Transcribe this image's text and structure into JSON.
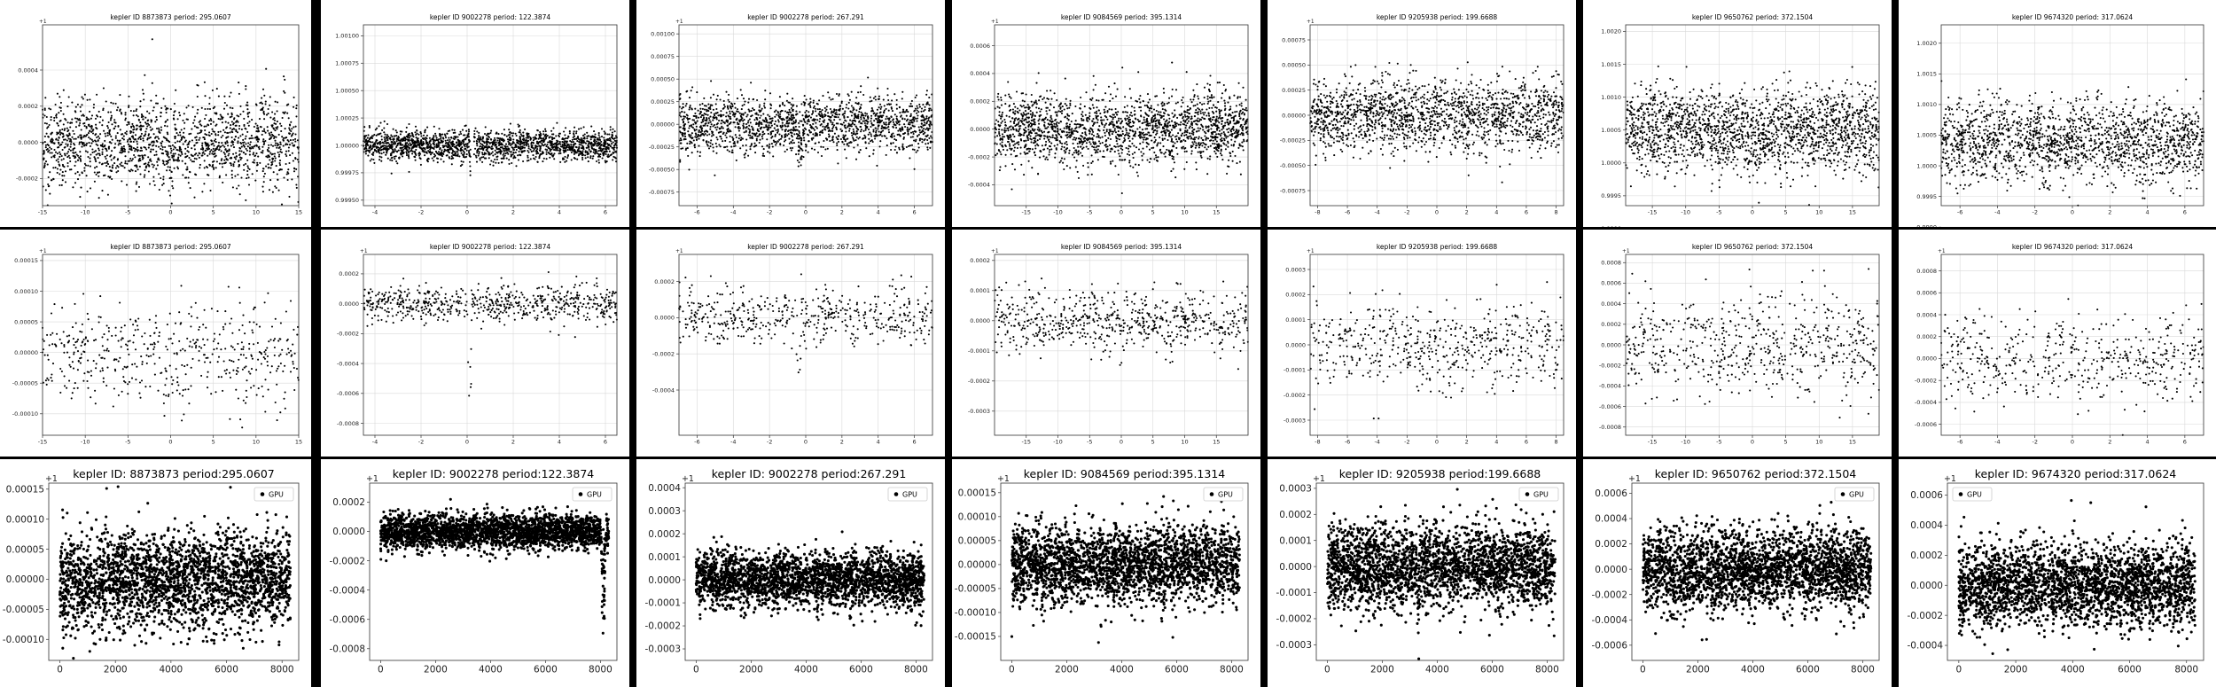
{
  "chart_data": [
    {
      "type": "scatter",
      "title": "kepler ID 8873873 period: 295.0607",
      "offset_label": "+1",
      "xlim": [
        -15,
        15
      ],
      "ylim": [
        -0.00035,
        0.00065
      ],
      "xticks": [
        "-15",
        "-10",
        "-5",
        "0",
        "5",
        "10",
        "15"
      ],
      "yticks": [
        "-0.0002",
        "0.0000",
        "0.0002",
        "0.0004"
      ],
      "grid": true,
      "points": {
        "n": 1700,
        "center": 0.0,
        "spread": 0.00012,
        "dips": [
          {
            "x": 0,
            "depth": 0.00015,
            "width": 0.35
          }
        ],
        "spikes": []
      }
    },
    {
      "type": "scatter",
      "title": "kepler ID 9002278 period: 122.3874",
      "offset_label": "",
      "xlim": [
        -4.5,
        6.5
      ],
      "ylim": [
        0.99945,
        1.0011
      ],
      "xticks": [
        "-4",
        "-2",
        "0",
        "2",
        "4",
        "6"
      ],
      "yticks": [
        "0.99950",
        "0.99975",
        "1.00000",
        "1.00025",
        "1.00050",
        "1.00075",
        "1.00100"
      ],
      "grid": true,
      "points": {
        "n": 1900,
        "center": 1.0,
        "spread": 7e-05,
        "dips": [
          {
            "x": 0.2,
            "depth": 0.0003,
            "width": 0.12
          }
        ],
        "spikes": []
      }
    },
    {
      "type": "scatter",
      "title": "kepler ID 9002278 period: 267.291",
      "offset_label": "+1",
      "xlim": [
        -7,
        7
      ],
      "ylim": [
        -0.0009,
        0.0011
      ],
      "xticks": [
        "-6",
        "-4",
        "-2",
        "0",
        "2",
        "4",
        "6"
      ],
      "yticks": [
        "-0.00075",
        "-0.00050",
        "-0.00025",
        "0.00000",
        "0.00025",
        "0.00050",
        "0.00075",
        "0.00100"
      ],
      "grid": true,
      "points": {
        "n": 1700,
        "center": 0.0,
        "spread": 0.00016,
        "dips": [
          {
            "x": -0.3,
            "depth": 0.00045,
            "width": 0.2
          }
        ],
        "spikes": []
      }
    },
    {
      "type": "scatter",
      "title": "kepler ID 9084569 period: 395.1314",
      "offset_label": "+1",
      "xlim": [
        -20,
        20
      ],
      "ylim": [
        -0.00055,
        0.00075
      ],
      "xticks": [
        "-15",
        "-10",
        "-5",
        "0",
        "5",
        "10",
        "15"
      ],
      "yticks": [
        "-0.0004",
        "-0.0002",
        "0.0000",
        "0.0002",
        "0.0004",
        "0.0006"
      ],
      "grid": true,
      "points": {
        "n": 1900,
        "center": 0.0,
        "spread": 0.00012,
        "dips": [
          {
            "x": 0,
            "depth": 0.0002,
            "width": 0.4
          },
          {
            "x": 8,
            "depth": 0.00025,
            "width": 0.5
          },
          {
            "x": -7,
            "depth": 0.0001,
            "width": 0.4
          }
        ],
        "spikes": [
          {
            "x": 8,
            "height": 0.0004,
            "width": 0.4
          },
          {
            "x": 14,
            "height": 0.0004,
            "width": 0.4
          }
        ]
      }
    },
    {
      "type": "scatter",
      "title": "kepler ID 9205938 period: 199.6688",
      "offset_label": "+1",
      "xlim": [
        -8.5,
        8.5
      ],
      "ylim": [
        -0.0009,
        0.0009
      ],
      "xticks": [
        "-8",
        "-6",
        "-4",
        "-2",
        "0",
        "2",
        "4",
        "6",
        "8"
      ],
      "yticks": [
        "-0.00075",
        "-0.00050",
        "-0.00025",
        "0.00000",
        "0.00025",
        "0.00050",
        "0.00075"
      ],
      "grid": true,
      "points": {
        "n": 1700,
        "center": 0.0,
        "spread": 0.00018,
        "dips": [
          {
            "x": -0.5,
            "depth": 0.0002,
            "width": 0.3
          }
        ],
        "spikes": []
      }
    },
    {
      "type": "scatter",
      "title": "kepler ID 9650762 period: 372.1504",
      "offset_label": "",
      "xlim": [
        -19,
        19
      ],
      "ylim": [
        0.99935,
        1.0021
      ],
      "xticks": [
        "-15",
        "-10",
        "-5",
        "0",
        "5",
        "10",
        "15"
      ],
      "yticks": [
        "0.9990",
        "0.9995",
        "1.0000",
        "1.0005",
        "1.0010",
        "1.0015",
        "1.0020"
      ],
      "grid": true,
      "points": {
        "n": 1900,
        "center": 1.0005,
        "spread": 0.00032,
        "dips": [
          {
            "x": -5,
            "depth": 0.00025,
            "width": 0.5
          }
        ],
        "spikes": []
      }
    },
    {
      "type": "scatter",
      "title": "kepler ID 9674320 period: 317.0624",
      "offset_label": "",
      "xlim": [
        -7,
        7
      ],
      "ylim": [
        0.99935,
        1.0023
      ],
      "xticks": [
        "-6",
        "-4",
        "-2",
        "0",
        "2",
        "4",
        "6"
      ],
      "yticks": [
        "0.9990",
        "0.9995",
        "1.0000",
        "1.0005",
        "1.0010",
        "1.0015",
        "1.0020"
      ],
      "grid": true,
      "points": {
        "n": 1700,
        "center": 1.0004,
        "spread": 0.00033,
        "dips": [
          {
            "x": -1.4,
            "depth": 0.0004,
            "width": 0.25
          }
        ],
        "spikes": []
      }
    },
    {
      "type": "scatter",
      "title": "kepler ID 8873873 period: 295.0607",
      "offset_label": "+1",
      "xlim": [
        -15,
        15
      ],
      "ylim": [
        -0.000135,
        0.00016
      ],
      "xticks": [
        "-15",
        "-10",
        "-5",
        "0",
        "5",
        "10",
        "15"
      ],
      "yticks": [
        "-0.00010",
        "-0.00005",
        "0.00000",
        "0.00005",
        "0.00010",
        "0.00015"
      ],
      "grid": true,
      "points": {
        "n": 500,
        "center": 0.0,
        "spread": 4e-05,
        "dips": [
          {
            "x": -1,
            "depth": 9e-05,
            "width": 0.5
          }
        ],
        "spikes": []
      }
    },
    {
      "type": "scatter",
      "title": "kepler ID 9002278 period: 122.3874",
      "offset_label": "+1",
      "xlim": [
        -4.5,
        6.5
      ],
      "ylim": [
        -0.00088,
        0.00033
      ],
      "xticks": [
        "-4",
        "-2",
        "0",
        "2",
        "4",
        "6"
      ],
      "yticks": [
        "-0.0008",
        "-0.0006",
        "-0.0004",
        "-0.0002",
        "0.0000",
        "0.0002"
      ],
      "grid": true,
      "points": {
        "n": 650,
        "center": 0.0,
        "spread": 6e-05,
        "dips": [
          {
            "x": 0.1,
            "depth": 0.0007,
            "width": 0.12
          }
        ],
        "spikes": []
      }
    },
    {
      "type": "scatter",
      "title": "kepler ID 9002278 period: 267.291",
      "offset_label": "+1",
      "xlim": [
        -7,
        7
      ],
      "ylim": [
        -0.00065,
        0.00035
      ],
      "xticks": [
        "-6",
        "-4",
        "-2",
        "0",
        "2",
        "4",
        "6"
      ],
      "yticks": [
        "-0.0004",
        "-0.0002",
        "0.0000",
        "0.0002"
      ],
      "grid": true,
      "points": {
        "n": 500,
        "center": 0.0,
        "spread": 8e-05,
        "dips": [
          {
            "x": -0.4,
            "depth": 0.0005,
            "width": 0.15
          }
        ],
        "spikes": []
      }
    },
    {
      "type": "scatter",
      "title": "kepler ID 9084569 period: 395.1314",
      "offset_label": "+1",
      "xlim": [
        -20,
        20
      ],
      "ylim": [
        -0.00038,
        0.00022
      ],
      "xticks": [
        "-15",
        "-10",
        "-5",
        "0",
        "5",
        "10",
        "15"
      ],
      "yticks": [
        "-0.0003",
        "-0.0002",
        "-0.0001",
        "0.0000",
        "0.0001",
        "0.0002"
      ],
      "grid": true,
      "points": {
        "n": 650,
        "center": 0.0,
        "spread": 5e-05,
        "dips": [
          {
            "x": 0,
            "depth": 0.0001,
            "width": 0.5
          },
          {
            "x": 8,
            "depth": 0.00012,
            "width": 0.5
          }
        ],
        "spikes": [
          {
            "x": 8,
            "height": 0.00012,
            "width": 0.5
          }
        ]
      }
    },
    {
      "type": "scatter",
      "title": "kepler ID 9205938 period: 199.6688",
      "offset_label": "+1",
      "xlim": [
        -8.5,
        8.5
      ],
      "ylim": [
        -0.00036,
        0.00036
      ],
      "xticks": [
        "-8",
        "-6",
        "-4",
        "-2",
        "0",
        "2",
        "4",
        "6",
        "8"
      ],
      "yticks": [
        "-0.0003",
        "-0.0002",
        "-0.0001",
        "0.0000",
        "0.0001",
        "0.0002",
        "0.0003"
      ],
      "grid": true,
      "points": {
        "n": 550,
        "center": 0.0,
        "spread": 9e-05,
        "dips": [
          {
            "x": -1,
            "depth": 0.00012,
            "width": 0.4
          }
        ],
        "spikes": []
      }
    },
    {
      "type": "scatter",
      "title": "kepler ID 9650762 period: 372.1504",
      "offset_label": "+1",
      "xlim": [
        -19,
        19
      ],
      "ylim": [
        -0.00088,
        0.00088
      ],
      "xticks": [
        "-15",
        "-10",
        "-5",
        "0",
        "5",
        "10",
        "15"
      ],
      "yticks": [
        "-0.0008",
        "-0.0006",
        "-0.0004",
        "-0.0002",
        "0.0000",
        "0.0002",
        "0.0004",
        "0.0006",
        "0.0008"
      ],
      "grid": true,
      "points": {
        "n": 600,
        "center": 0.0,
        "spread": 0.00024,
        "dips": [
          {
            "x": -5,
            "depth": 0.0003,
            "width": 0.5
          }
        ],
        "spikes": []
      }
    },
    {
      "type": "scatter",
      "title": "kepler ID 9674320 period: 317.0624",
      "offset_label": "+1",
      "xlim": [
        -7,
        7
      ],
      "ylim": [
        -0.0007,
        0.00095
      ],
      "xticks": [
        "-6",
        "-4",
        "-2",
        "0",
        "2",
        "4",
        "6"
      ],
      "yticks": [
        "-0.0006",
        "-0.0004",
        "-0.0002",
        "0.0000",
        "0.0002",
        "0.0004",
        "0.0006",
        "0.0008"
      ],
      "grid": true,
      "points": {
        "n": 500,
        "center": 0.0,
        "spread": 0.00022,
        "dips": [
          {
            "x": -1.6,
            "depth": 0.0004,
            "width": 0.25
          }
        ],
        "spikes": []
      }
    },
    {
      "type": "scatter",
      "title": "kepler ID: 8873873 period:295.0607",
      "offset_label": "+1",
      "legend": "GPU",
      "legend_loc": "top-right",
      "xlim": [
        -400,
        8600
      ],
      "ylim": [
        -0.000135,
        0.00016
      ],
      "xticks": [
        "0",
        "2000",
        "4000",
        "6000",
        "8000"
      ],
      "yticks": [
        "-0.00010",
        "-0.00005",
        "0.00000",
        "0.00005",
        "0.00010",
        "0.00015"
      ],
      "grid": false,
      "points": {
        "n": 2600,
        "center": 0.0,
        "spread": 4e-05,
        "xmin": 0,
        "xmax": 8300,
        "dips": [],
        "spikes": []
      }
    },
    {
      "type": "scatter",
      "title": "kepler ID: 9002278 period:122.3874",
      "offset_label": "+1",
      "legend": "GPU",
      "legend_loc": "top-right",
      "xlim": [
        -400,
        8600
      ],
      "ylim": [
        -0.00088,
        0.00033
      ],
      "xticks": [
        "0",
        "2000",
        "4000",
        "6000",
        "8000"
      ],
      "yticks": [
        "-0.0008",
        "-0.0006",
        "-0.0004",
        "-0.0002",
        "0.0000",
        "0.0002"
      ],
      "grid": false,
      "points": {
        "n": 2600,
        "center": 0.0,
        "spread": 6e-05,
        "xmin": 0,
        "xmax": 8300,
        "dips": [
          {
            "x": 8100,
            "depth": 0.0007,
            "width": 80
          }
        ],
        "spikes": []
      }
    },
    {
      "type": "scatter",
      "title": "kepler ID: 9002278 period:267.291",
      "offset_label": "+1",
      "legend": "GPU",
      "legend_loc": "top-right",
      "xlim": [
        -400,
        8600
      ],
      "ylim": [
        -0.00035,
        0.00042
      ],
      "xticks": [
        "0",
        "2000",
        "4000",
        "6000",
        "8000"
      ],
      "yticks": [
        "-0.0003",
        "-0.0002",
        "-0.0001",
        "0.0000",
        "0.0001",
        "0.0002",
        "0.0003",
        "0.0004"
      ],
      "grid": false,
      "points": {
        "n": 2600,
        "center": 0.0,
        "spread": 6e-05,
        "xmin": 0,
        "xmax": 8300,
        "dips": [],
        "spikes": []
      }
    },
    {
      "type": "scatter",
      "title": "kepler ID: 9084569 period:395.1314",
      "offset_label": "+1",
      "legend": "GPU",
      "legend_loc": "top-right",
      "xlim": [
        -400,
        8600
      ],
      "ylim": [
        -0.0002,
        0.00017
      ],
      "xticks": [
        "0",
        "2000",
        "4000",
        "6000",
        "8000"
      ],
      "yticks": [
        "-0.00015",
        "-0.00010",
        "-0.00005",
        "0.00000",
        "0.00005",
        "0.00010",
        "0.00015"
      ],
      "grid": false,
      "points": {
        "n": 2600,
        "center": 0.0,
        "spread": 4e-05,
        "xmin": 0,
        "xmax": 8300,
        "dips": [
          {
            "x": 5500,
            "depth": 0.0001,
            "width": 120
          }
        ],
        "spikes": [
          {
            "x": 5500,
            "height": 0.0001,
            "width": 120
          }
        ]
      }
    },
    {
      "type": "scatter",
      "title": "kepler ID: 9205938 period:199.6688",
      "offset_label": "+1",
      "legend": "GPU",
      "legend_loc": "top-right",
      "xlim": [
        -400,
        8600
      ],
      "ylim": [
        -0.00036,
        0.00032
      ],
      "xticks": [
        "0",
        "2000",
        "4000",
        "6000",
        "8000"
      ],
      "yticks": [
        "-0.0003",
        "-0.0002",
        "-0.0001",
        "0.0000",
        "0.0001",
        "0.0002",
        "0.0003"
      ],
      "grid": false,
      "points": {
        "n": 2600,
        "center": 0.0,
        "spread": 8e-05,
        "xmin": 0,
        "xmax": 8300,
        "dips": [
          {
            "x": 3300,
            "depth": 0.0002,
            "width": 60
          }
        ],
        "spikes": []
      }
    },
    {
      "type": "scatter",
      "title": "kepler ID: 9650762 period:372.1504",
      "offset_label": "+1",
      "legend": "GPU",
      "legend_loc": "top-right",
      "xlim": [
        -400,
        8600
      ],
      "ylim": [
        -0.00072,
        0.00068
      ],
      "xticks": [
        "0",
        "2000",
        "4000",
        "6000",
        "8000"
      ],
      "yticks": [
        "-0.0006",
        "-0.0004",
        "-0.0002",
        "0.0000",
        "0.0002",
        "0.0004",
        "0.0006"
      ],
      "grid": false,
      "points": {
        "n": 2600,
        "center": 0.0,
        "spread": 0.00016,
        "xmin": 0,
        "xmax": 8300,
        "dips": [],
        "spikes": []
      }
    },
    {
      "type": "scatter",
      "title": "kepler ID: 9674320 period:317.0624",
      "offset_label": "+1",
      "legend": "GPU",
      "legend_loc": "top-left",
      "xlim": [
        -400,
        8600
      ],
      "ylim": [
        -0.0005,
        0.00068
      ],
      "xticks": [
        "0",
        "2000",
        "4000",
        "6000",
        "8000"
      ],
      "yticks": [
        "-0.0004",
        "-0.0002",
        "0.0000",
        "0.0002",
        "0.0004",
        "0.0006"
      ],
      "grid": false,
      "points": {
        "n": 2600,
        "center": 0.0,
        "spread": 0.00014,
        "xmin": 0,
        "xmax": 8300,
        "dips": [],
        "spikes": []
      }
    }
  ]
}
